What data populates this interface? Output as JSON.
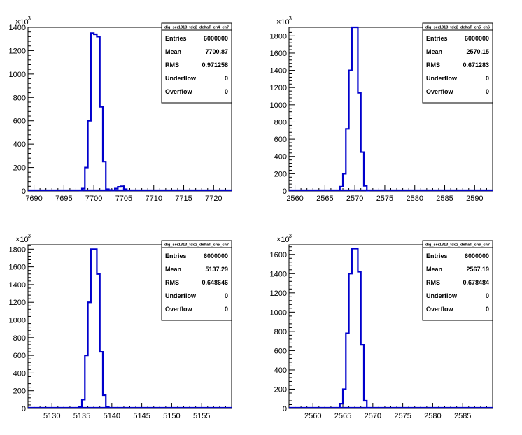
{
  "chart_data": [
    {
      "type": "histogram",
      "title": "dig_ser1313_tdc2_deltaT_ch4_ch7",
      "xlim": [
        7689,
        7723
      ],
      "ylim": [
        0,
        1400
      ],
      "y_multiplier": "x10^3",
      "x_ticks": [
        7690,
        7695,
        7700,
        7705,
        7710,
        7715,
        7720
      ],
      "y_ticks": [
        0,
        200,
        400,
        600,
        800,
        1000,
        1200,
        1400
      ],
      "bin_width": 0.5,
      "bins": [
        {
          "x": 7697.5,
          "y": 5
        },
        {
          "x": 7698.0,
          "y": 20
        },
        {
          "x": 7698.5,
          "y": 200
        },
        {
          "x": 7699.0,
          "y": 600
        },
        {
          "x": 7699.5,
          "y": 1350
        },
        {
          "x": 7700.0,
          "y": 1340
        },
        {
          "x": 7700.5,
          "y": 1320
        },
        {
          "x": 7701.0,
          "y": 720
        },
        {
          "x": 7701.5,
          "y": 250
        },
        {
          "x": 7702.0,
          "y": 15
        },
        {
          "x": 7702.5,
          "y": 8
        },
        {
          "x": 7703.0,
          "y": 5
        },
        {
          "x": 7703.5,
          "y": 20
        },
        {
          "x": 7704.0,
          "y": 35
        },
        {
          "x": 7704.5,
          "y": 40
        },
        {
          "x": 7705.0,
          "y": 15
        },
        {
          "x": 7705.5,
          "y": 5
        }
      ],
      "stats": [
        {
          "key": "Entries",
          "value": "6000000"
        },
        {
          "key": "Mean",
          "value": "7700.87"
        },
        {
          "key": "RMS",
          "value": "0.971258"
        },
        {
          "key": "Underflow",
          "value": "0"
        },
        {
          "key": "Overflow",
          "value": "0"
        }
      ]
    },
    {
      "type": "histogram",
      "title": "dig_ser1313_tdc2_deltaT_ch5_ch6",
      "xlim": [
        2559,
        2593
      ],
      "ylim": [
        0,
        1900
      ],
      "y_multiplier": "x10^3",
      "x_ticks": [
        2560,
        2565,
        2570,
        2575,
        2580,
        2585,
        2590
      ],
      "y_ticks": [
        0,
        200,
        400,
        600,
        800,
        1000,
        1200,
        1400,
        1600,
        1800
      ],
      "bin_width": 0.5,
      "bins": [
        {
          "x": 2567.5,
          "y": 50
        },
        {
          "x": 2568.0,
          "y": 200
        },
        {
          "x": 2568.5,
          "y": 720
        },
        {
          "x": 2569.0,
          "y": 1400
        },
        {
          "x": 2569.5,
          "y": 1900
        },
        {
          "x": 2570.0,
          "y": 1900
        },
        {
          "x": 2570.5,
          "y": 1140
        },
        {
          "x": 2571.0,
          "y": 450
        },
        {
          "x": 2571.5,
          "y": 60
        },
        {
          "x": 2572.0,
          "y": 5
        }
      ],
      "stats": [
        {
          "key": "Entries",
          "value": "6000000"
        },
        {
          "key": "Mean",
          "value": "2570.15"
        },
        {
          "key": "RMS",
          "value": "0.671283"
        },
        {
          "key": "Underflow",
          "value": "0"
        },
        {
          "key": "Overflow",
          "value": "0"
        }
      ]
    },
    {
      "type": "histogram",
      "title": "dig_ser1313_tdc2_deltaT_ch5_ch7",
      "xlim": [
        5126,
        5160
      ],
      "ylim": [
        0,
        1850
      ],
      "y_multiplier": "x10^3",
      "x_ticks": [
        5130,
        5135,
        5140,
        5145,
        5150,
        5155
      ],
      "y_ticks": [
        0,
        200,
        400,
        600,
        800,
        1000,
        1200,
        1400,
        1600,
        1800
      ],
      "bin_width": 0.5,
      "bins": [
        {
          "x": 5134.5,
          "y": 20
        },
        {
          "x": 5135.0,
          "y": 100
        },
        {
          "x": 5135.5,
          "y": 600
        },
        {
          "x": 5136.0,
          "y": 1200
        },
        {
          "x": 5136.5,
          "y": 1800
        },
        {
          "x": 5137.0,
          "y": 1800
        },
        {
          "x": 5137.5,
          "y": 1520
        },
        {
          "x": 5138.0,
          "y": 640
        },
        {
          "x": 5138.5,
          "y": 150
        },
        {
          "x": 5139.0,
          "y": 20
        }
      ],
      "stats": [
        {
          "key": "Entries",
          "value": "6000000"
        },
        {
          "key": "Mean",
          "value": "5137.29"
        },
        {
          "key": "RMS",
          "value": "0.648646"
        },
        {
          "key": "Underflow",
          "value": "0"
        },
        {
          "key": "Overflow",
          "value": "0"
        }
      ]
    },
    {
      "type": "histogram",
      "title": "dig_ser1313_tdc2_deltaT_ch6_ch7",
      "xlim": [
        2556,
        2590
      ],
      "ylim": [
        0,
        1700
      ],
      "y_multiplier": "x10^3",
      "x_ticks": [
        2560,
        2565,
        2570,
        2575,
        2580,
        2585
      ],
      "y_ticks": [
        0,
        200,
        400,
        600,
        800,
        1000,
        1200,
        1400,
        1600
      ],
      "bin_width": 0.5,
      "bins": [
        {
          "x": 2564.5,
          "y": 50
        },
        {
          "x": 2565.0,
          "y": 200
        },
        {
          "x": 2565.5,
          "y": 780
        },
        {
          "x": 2566.0,
          "y": 1400
        },
        {
          "x": 2566.5,
          "y": 1660
        },
        {
          "x": 2567.0,
          "y": 1660
        },
        {
          "x": 2567.5,
          "y": 1420
        },
        {
          "x": 2568.0,
          "y": 660
        },
        {
          "x": 2568.5,
          "y": 80
        },
        {
          "x": 2569.0,
          "y": 5
        }
      ],
      "stats": [
        {
          "key": "Entries",
          "value": "6000000"
        },
        {
          "key": "Mean",
          "value": "2567.19"
        },
        {
          "key": "RMS",
          "value": "0.678484"
        },
        {
          "key": "Underflow",
          "value": "0"
        },
        {
          "key": "Overflow",
          "value": "0"
        }
      ]
    }
  ]
}
